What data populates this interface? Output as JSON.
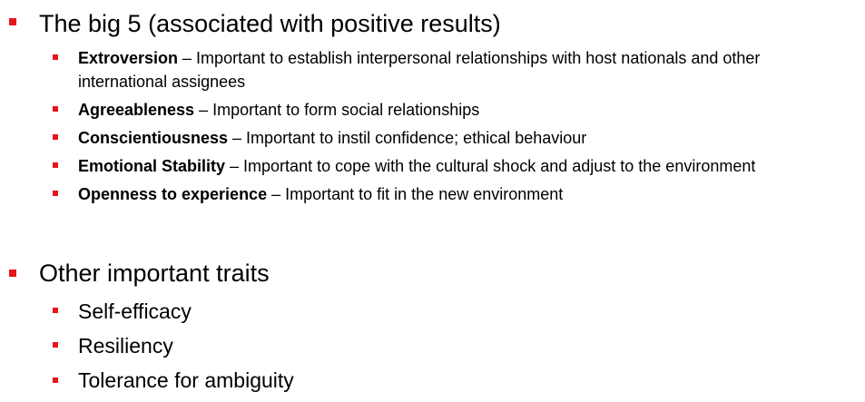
{
  "sections": [
    {
      "heading": "The big 5 (associated with positive results)",
      "items": [
        {
          "term": "Extroversion",
          "desc": " – Important to establish interpersonal relationships with host nationals and other international assignees"
        },
        {
          "term": "Agreeableness",
          "desc": " – Important to form social relationships"
        },
        {
          "term": "Conscientiousness",
          "desc": " – Important to instil confidence; ethical behaviour"
        },
        {
          "term": "Emotional Stability",
          "desc": " – Important to cope with the cultural shock and adjust to the environment"
        },
        {
          "term": "Openness to experience",
          "desc": " – Important to fit in the new environment"
        }
      ]
    },
    {
      "heading": "Other important traits",
      "items": [
        {
          "label": "Self-efficacy"
        },
        {
          "label": "Resiliency"
        },
        {
          "label": "Tolerance for ambiguity"
        }
      ]
    }
  ],
  "colors": {
    "bullet": "#e8141b",
    "text": "#000000",
    "background": "#ffffff"
  }
}
